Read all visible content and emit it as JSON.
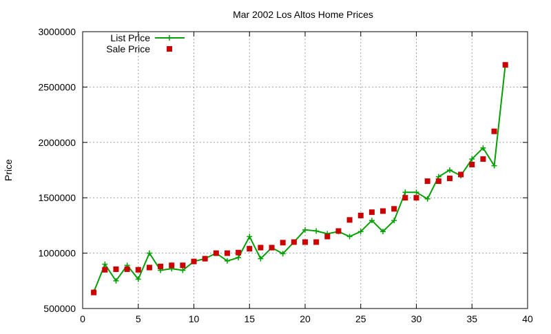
{
  "chart_data": {
    "type": "line",
    "title": "Mar 2002 Los Altos Home Prices",
    "xlabel": "",
    "ylabel": "Price",
    "xlim": [
      0,
      40
    ],
    "ylim": [
      500000,
      3000000
    ],
    "xticks": [
      0,
      5,
      10,
      15,
      20,
      25,
      30,
      35,
      40
    ],
    "yticks": [
      500000,
      1000000,
      1500000,
      2000000,
      2500000,
      3000000
    ],
    "grid": true,
    "legend_position": "top-left",
    "series": [
      {
        "name": "List Price",
        "style": "linespoints",
        "marker": "plus",
        "color": "#00a000",
        "x": [
          1,
          2,
          3,
          4,
          5,
          6,
          7,
          8,
          9,
          10,
          11,
          12,
          13,
          14,
          15,
          16,
          17,
          18,
          19,
          20,
          21,
          22,
          23,
          24,
          25,
          26,
          27,
          28,
          29,
          30,
          31,
          32,
          33,
          34,
          35,
          36,
          37,
          38
        ],
        "y": [
          650000,
          900000,
          750000,
          890000,
          765000,
          1000000,
          845000,
          860000,
          845000,
          925000,
          950000,
          1000000,
          930000,
          960000,
          1150000,
          950000,
          1050000,
          995000,
          1100000,
          1210000,
          1200000,
          1175000,
          1195000,
          1150000,
          1195000,
          1295000,
          1195000,
          1295000,
          1550000,
          1550000,
          1490000,
          1690000,
          1750000,
          1700000,
          1850000,
          1950000,
          1790000,
          2700000
        ]
      },
      {
        "name": "Sale Price",
        "style": "points",
        "marker": "square",
        "color": "#cc0000",
        "x": [
          1,
          2,
          3,
          4,
          5,
          6,
          7,
          8,
          9,
          10,
          11,
          12,
          13,
          14,
          15,
          16,
          17,
          18,
          19,
          20,
          21,
          22,
          23,
          24,
          25,
          26,
          27,
          28,
          29,
          30,
          31,
          32,
          33,
          34,
          35,
          36,
          37,
          38
        ],
        "y": [
          645000,
          850000,
          855000,
          855000,
          850000,
          870000,
          880000,
          890000,
          890000,
          925000,
          950000,
          1000000,
          1000000,
          1005000,
          1040000,
          1050000,
          1050000,
          1095000,
          1100000,
          1100000,
          1100000,
          1150000,
          1200000,
          1300000,
          1340000,
          1370000,
          1380000,
          1400000,
          1500000,
          1500000,
          1650000,
          1650000,
          1675000,
          1710000,
          1800000,
          1850000,
          2100000,
          2700000
        ]
      }
    ]
  }
}
